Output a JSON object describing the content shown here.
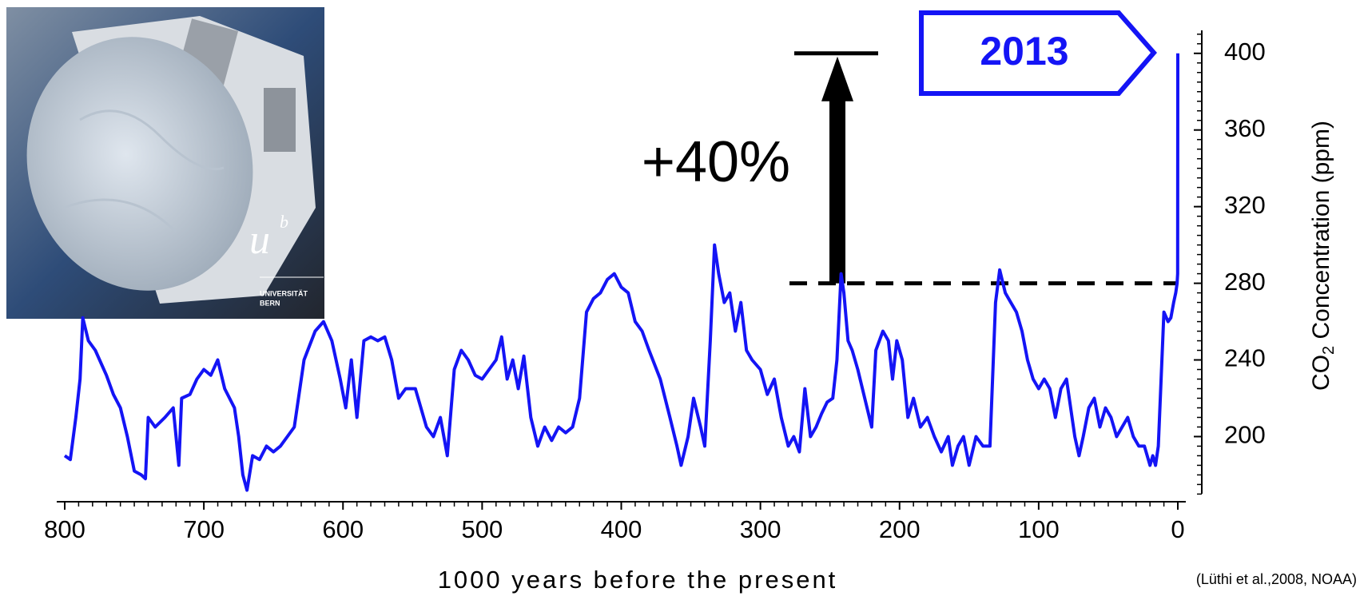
{
  "chart_data": {
    "type": "line",
    "xlabel": "1000 years before the present",
    "ylabel": {
      "main": "CO",
      "sub": "2",
      "rest": " Concentration (ppm)"
    },
    "source": "(Lüthi et al.,2008, NOAA)",
    "annotations": {
      "year": "2013",
      "change": "+40%"
    },
    "photo_text": {
      "logo": "u",
      "logo_sup": "b",
      "line1": "UNIVERSITÄT",
      "line2": "BERN"
    },
    "color": "#1414f5",
    "xlim": [
      800,
      0
    ],
    "xticks": [
      800,
      700,
      600,
      500,
      400,
      300,
      200,
      100,
      0
    ],
    "ylim": [
      166,
      412
    ],
    "yticks": [
      200,
      240,
      280,
      320,
      360,
      400
    ],
    "x": [
      800,
      796,
      792,
      789,
      787,
      783,
      778,
      770,
      765,
      760,
      755,
      750,
      745,
      742,
      740,
      735,
      728,
      722,
      718,
      716,
      710,
      705,
      700,
      695,
      690,
      685,
      678,
      675,
      672,
      669,
      665,
      660,
      655,
      650,
      645,
      640,
      635,
      628,
      620,
      614,
      608,
      602,
      598,
      594,
      590,
      585,
      580,
      575,
      570,
      565,
      560,
      555,
      548,
      540,
      535,
      530,
      525,
      520,
      515,
      510,
      505,
      500,
      495,
      490,
      486,
      482,
      478,
      474,
      470,
      465,
      460,
      455,
      450,
      445,
      440,
      435,
      430,
      425,
      420,
      415,
      410,
      405,
      400,
      395,
      390,
      385,
      380,
      372,
      365,
      360,
      357,
      352,
      348,
      343,
      340,
      336,
      333,
      330,
      326,
      322,
      318,
      314,
      310,
      306,
      300,
      295,
      290,
      285,
      280,
      276,
      272,
      268,
      264,
      260,
      256,
      252,
      248,
      245,
      242,
      240,
      237,
      234,
      230,
      225,
      220,
      217,
      212,
      208,
      205,
      202,
      198,
      194,
      190,
      185,
      180,
      175,
      170,
      165,
      162,
      158,
      154,
      150,
      145,
      140,
      135,
      131,
      128,
      124,
      120,
      116,
      112,
      108,
      104,
      100,
      96,
      92,
      88,
      84,
      80,
      77,
      74,
      71,
      68,
      64,
      60,
      56,
      52,
      48,
      44,
      40,
      36,
      32,
      28,
      24,
      20,
      18,
      16,
      14,
      12,
      10,
      7,
      5,
      3,
      1.5,
      0.5,
      0.1,
      0
    ],
    "values": [
      190,
      188,
      210,
      230,
      262,
      250,
      245,
      232,
      222,
      215,
      200,
      182,
      180,
      178,
      210,
      205,
      210,
      215,
      185,
      220,
      222,
      230,
      235,
      232,
      240,
      225,
      215,
      200,
      180,
      172,
      190,
      188,
      195,
      192,
      195,
      200,
      205,
      240,
      255,
      260,
      250,
      230,
      215,
      240,
      210,
      250,
      252,
      250,
      252,
      240,
      220,
      225,
      225,
      205,
      200,
      210,
      190,
      235,
      245,
      240,
      232,
      230,
      235,
      240,
      252,
      230,
      240,
      225,
      242,
      210,
      195,
      205,
      198,
      205,
      202,
      205,
      220,
      265,
      272,
      275,
      282,
      285,
      278,
      275,
      260,
      255,
      245,
      230,
      210,
      195,
      185,
      200,
      220,
      205,
      195,
      250,
      300,
      285,
      270,
      275,
      255,
      270,
      245,
      240,
      235,
      222,
      230,
      210,
      195,
      200,
      192,
      225,
      200,
      205,
      212,
      218,
      220,
      240,
      285,
      275,
      250,
      245,
      235,
      220,
      205,
      245,
      255,
      250,
      230,
      250,
      240,
      210,
      220,
      205,
      210,
      200,
      192,
      200,
      185,
      195,
      200,
      185,
      200,
      195,
      195,
      270,
      287,
      275,
      270,
      265,
      255,
      240,
      230,
      225,
      230,
      225,
      210,
      225,
      230,
      215,
      200,
      190,
      200,
      215,
      220,
      205,
      215,
      210,
      200,
      205,
      210,
      200,
      195,
      195,
      185,
      190,
      185,
      195,
      230,
      265,
      260,
      262,
      270,
      275,
      280,
      285,
      400
    ]
  }
}
